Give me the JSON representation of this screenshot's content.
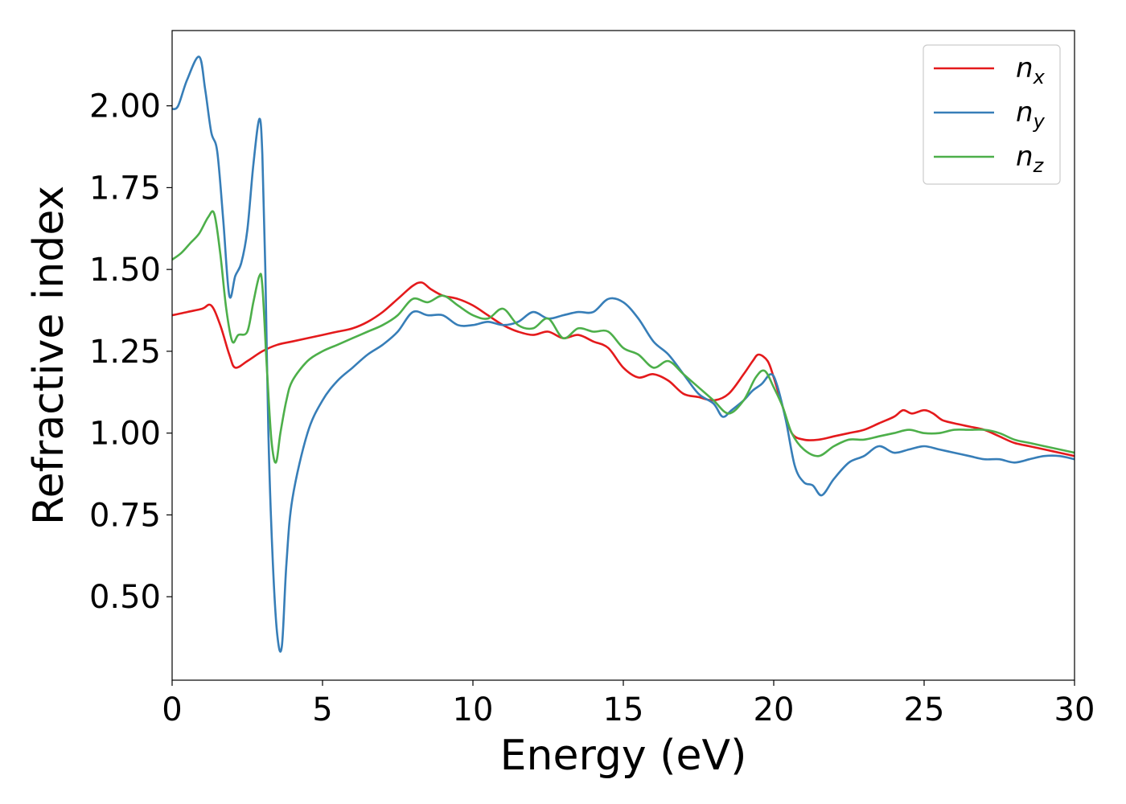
{
  "chart_data": {
    "type": "line",
    "xlabel": "Energy (eV)",
    "ylabel": "Refractive index",
    "xlim": [
      0,
      30
    ],
    "ylim": [
      0.245,
      2.23
    ],
    "xticks": [
      "0",
      "5",
      "10",
      "15",
      "20",
      "25",
      "30"
    ],
    "yticks": [
      "0.50",
      "0.75",
      "1.00",
      "1.25",
      "1.50",
      "1.75",
      "2.00"
    ],
    "grid": false,
    "legend_position": "top-right",
    "series": [
      {
        "name": "n",
        "subscript": "x",
        "color": "#e41a1c",
        "x": [
          0,
          0.5,
          1.0,
          1.3,
          1.6,
          1.9,
          2.1,
          2.5,
          3.0,
          3.5,
          4.0,
          5.0,
          5.5,
          6.0,
          6.5,
          7.0,
          7.5,
          8.0,
          8.3,
          8.6,
          9.0,
          9.5,
          10.0,
          10.5,
          11.0,
          11.5,
          12.0,
          12.5,
          13.0,
          13.5,
          14.0,
          14.5,
          15.0,
          15.5,
          16.0,
          16.5,
          17.0,
          17.5,
          18.0,
          18.5,
          19.0,
          19.3,
          19.5,
          19.8,
          20.0,
          20.3,
          20.6,
          21.0,
          21.5,
          22.0,
          22.5,
          23.0,
          23.5,
          24.0,
          24.3,
          24.6,
          25.0,
          25.3,
          25.6,
          26.0,
          26.5,
          27.0,
          27.5,
          28.0,
          28.5,
          29.0,
          29.5,
          30.0
        ],
        "y": [
          1.36,
          1.37,
          1.38,
          1.39,
          1.33,
          1.24,
          1.2,
          1.22,
          1.25,
          1.27,
          1.28,
          1.3,
          1.31,
          1.32,
          1.34,
          1.37,
          1.41,
          1.45,
          1.46,
          1.44,
          1.42,
          1.41,
          1.39,
          1.36,
          1.33,
          1.31,
          1.3,
          1.31,
          1.29,
          1.3,
          1.28,
          1.26,
          1.2,
          1.17,
          1.18,
          1.16,
          1.12,
          1.11,
          1.1,
          1.12,
          1.18,
          1.22,
          1.24,
          1.22,
          1.17,
          1.08,
          1.0,
          0.98,
          0.98,
          0.99,
          1.0,
          1.01,
          1.03,
          1.05,
          1.07,
          1.06,
          1.07,
          1.06,
          1.04,
          1.03,
          1.02,
          1.01,
          0.99,
          0.97,
          0.96,
          0.95,
          0.94,
          0.93
        ]
      },
      {
        "name": "n",
        "subscript": "y",
        "color": "#377eb8",
        "x": [
          0,
          0.2,
          0.5,
          0.9,
          1.1,
          1.3,
          1.5,
          1.7,
          1.9,
          2.1,
          2.3,
          2.5,
          2.7,
          2.9,
          3.0,
          3.1,
          3.2,
          3.35,
          3.5,
          3.65,
          3.8,
          4.0,
          4.5,
          5.0,
          5.5,
          6.0,
          6.5,
          7.0,
          7.5,
          8.0,
          8.5,
          9.0,
          9.5,
          10.0,
          10.5,
          11.0,
          11.5,
          12.0,
          12.5,
          13.0,
          13.5,
          14.0,
          14.5,
          15.0,
          15.5,
          16.0,
          16.5,
          17.0,
          17.5,
          18.0,
          18.3,
          18.6,
          19.0,
          19.3,
          19.6,
          19.9,
          20.1,
          20.4,
          20.7,
          21.0,
          21.3,
          21.6,
          22.0,
          22.5,
          23.0,
          23.5,
          24.0,
          24.5,
          25.0,
          25.5,
          26.0,
          26.5,
          27.0,
          27.5,
          28.0,
          28.5,
          29.0,
          29.5,
          30.0
        ],
        "y": [
          1.99,
          2.0,
          2.08,
          2.15,
          2.05,
          1.92,
          1.86,
          1.65,
          1.42,
          1.48,
          1.52,
          1.62,
          1.82,
          1.96,
          1.85,
          1.5,
          1.0,
          0.6,
          0.38,
          0.35,
          0.6,
          0.8,
          1.0,
          1.1,
          1.16,
          1.2,
          1.24,
          1.27,
          1.31,
          1.37,
          1.36,
          1.36,
          1.33,
          1.33,
          1.34,
          1.33,
          1.34,
          1.37,
          1.35,
          1.36,
          1.37,
          1.37,
          1.41,
          1.4,
          1.35,
          1.28,
          1.24,
          1.18,
          1.12,
          1.09,
          1.05,
          1.07,
          1.1,
          1.13,
          1.15,
          1.18,
          1.15,
          1.04,
          0.9,
          0.85,
          0.84,
          0.81,
          0.86,
          0.91,
          0.93,
          0.96,
          0.94,
          0.95,
          0.96,
          0.95,
          0.94,
          0.93,
          0.92,
          0.92,
          0.91,
          0.92,
          0.93,
          0.93,
          0.92
        ]
      },
      {
        "name": "n",
        "subscript": "z",
        "color": "#4daf4a",
        "x": [
          0,
          0.3,
          0.6,
          0.9,
          1.2,
          1.4,
          1.6,
          1.8,
          2.0,
          2.2,
          2.5,
          2.7,
          2.9,
          3.0,
          3.15,
          3.3,
          3.45,
          3.6,
          3.8,
          4.0,
          4.5,
          5.0,
          5.5,
          6.0,
          6.5,
          7.0,
          7.5,
          8.0,
          8.5,
          9.0,
          9.5,
          10.0,
          10.5,
          11.0,
          11.5,
          12.0,
          12.5,
          13.0,
          13.5,
          14.0,
          14.5,
          15.0,
          15.5,
          16.0,
          16.5,
          17.0,
          17.5,
          18.0,
          18.5,
          19.0,
          19.4,
          19.7,
          20.0,
          20.3,
          20.6,
          21.0,
          21.5,
          22.0,
          22.5,
          23.0,
          23.5,
          24.0,
          24.5,
          25.0,
          25.5,
          26.0,
          26.5,
          27.0,
          27.5,
          28.0,
          28.5,
          29.0,
          29.5,
          30.0
        ],
        "y": [
          1.53,
          1.55,
          1.58,
          1.61,
          1.66,
          1.67,
          1.55,
          1.38,
          1.28,
          1.3,
          1.31,
          1.4,
          1.48,
          1.45,
          1.2,
          0.98,
          0.91,
          1.0,
          1.1,
          1.16,
          1.22,
          1.25,
          1.27,
          1.29,
          1.31,
          1.33,
          1.36,
          1.41,
          1.4,
          1.42,
          1.39,
          1.36,
          1.35,
          1.38,
          1.33,
          1.32,
          1.35,
          1.29,
          1.32,
          1.31,
          1.31,
          1.26,
          1.24,
          1.2,
          1.22,
          1.18,
          1.14,
          1.1,
          1.06,
          1.1,
          1.17,
          1.19,
          1.14,
          1.08,
          1.0,
          0.95,
          0.93,
          0.96,
          0.98,
          0.98,
          0.99,
          1.0,
          1.01,
          1.0,
          1.0,
          1.01,
          1.01,
          1.01,
          1.0,
          0.98,
          0.97,
          0.96,
          0.95,
          0.94
        ]
      }
    ]
  }
}
